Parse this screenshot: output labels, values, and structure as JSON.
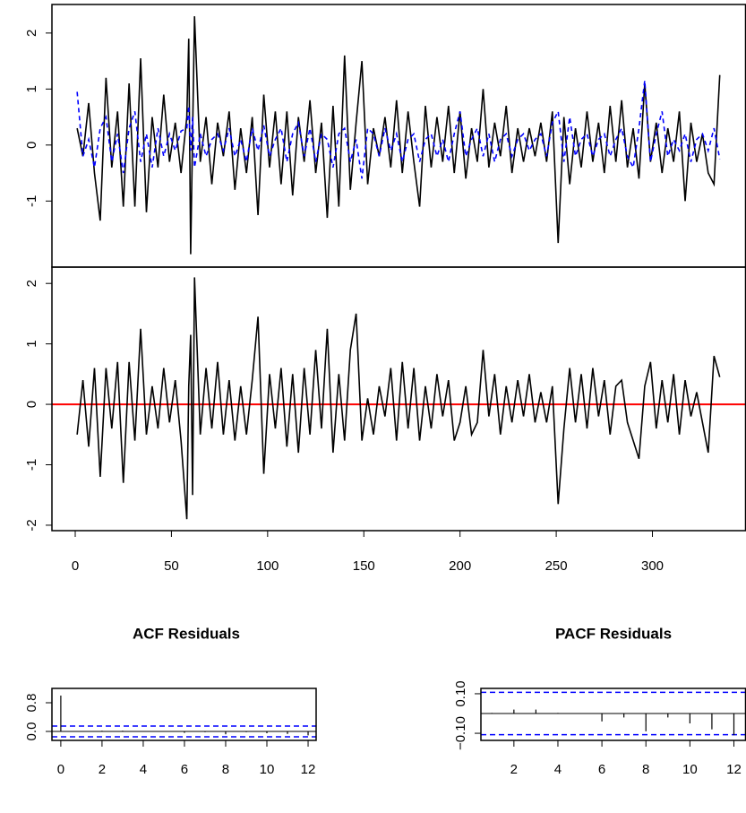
{
  "chart_data": [
    {
      "type": "line",
      "xlim": [
        -12.1,
        348.4
      ],
      "ylim": [
        -2.18,
        2.51
      ],
      "yticks": [
        -1,
        0,
        1,
        2
      ],
      "x": [
        1,
        4,
        7,
        10,
        13,
        16,
        19,
        22,
        25,
        28,
        31,
        34,
        37,
        40,
        43,
        46,
        49,
        52,
        55,
        58,
        59,
        60,
        61,
        62,
        65,
        68,
        71,
        74,
        77,
        80,
        83,
        86,
        89,
        92,
        95,
        98,
        101,
        104,
        107,
        110,
        113,
        116,
        119,
        122,
        125,
        128,
        131,
        134,
        137,
        140,
        143,
        146,
        149,
        152,
        155,
        158,
        161,
        164,
        167,
        170,
        173,
        176,
        179,
        182,
        185,
        188,
        191,
        194,
        197,
        200,
        203,
        206,
        209,
        212,
        215,
        218,
        221,
        224,
        227,
        230,
        233,
        236,
        239,
        242,
        245,
        248,
        251,
        254,
        257,
        260,
        263,
        266,
        269,
        272,
        275,
        278,
        281,
        284,
        287,
        290,
        293,
        296,
        299,
        302,
        305,
        308,
        311,
        314,
        317,
        320,
        323,
        326,
        329,
        332,
        335
      ],
      "series": [
        {
          "color": "#000000",
          "line_style": "solid",
          "values": [
            0.3,
            -0.2,
            0.75,
            -0.5,
            -1.35,
            1.2,
            -0.4,
            0.6,
            -1.1,
            1.1,
            -1.1,
            1.55,
            -1.2,
            0.5,
            -0.4,
            0.9,
            -0.3,
            0.4,
            -0.5,
            0.5,
            1.9,
            -1.95,
            0.2,
            2.3,
            -0.3,
            0.5,
            -0.7,
            0.4,
            -0.2,
            0.6,
            -0.8,
            0.3,
            -0.5,
            0.5,
            -1.25,
            0.9,
            -0.4,
            0.6,
            -0.7,
            0.6,
            -0.9,
            0.5,
            -0.3,
            0.8,
            -0.5,
            0.4,
            -1.3,
            0.7,
            -1.1,
            1.6,
            -0.8,
            0.4,
            1.5,
            -0.7,
            0.3,
            -0.2,
            0.5,
            -0.4,
            0.8,
            -0.5,
            0.6,
            -0.3,
            -1.1,
            0.7,
            -0.4,
            0.5,
            -0.3,
            0.7,
            -0.5,
            0.6,
            -0.6,
            0.3,
            -0.3,
            1.0,
            -0.4,
            0.4,
            -0.2,
            0.7,
            -0.5,
            0.3,
            -0.3,
            0.3,
            -0.2,
            0.4,
            -0.3,
            0.6,
            -1.75,
            0.5,
            -0.7,
            0.3,
            -0.4,
            0.6,
            -0.3,
            0.4,
            -0.5,
            0.7,
            -0.3,
            0.8,
            -0.4,
            0.3,
            -0.6,
            1.1,
            -0.3,
            0.4,
            -0.5,
            0.3,
            -0.3,
            0.6,
            -1.0,
            0.4,
            -0.3,
            0.2,
            -0.5,
            -0.7,
            1.25
          ]
        },
        {
          "color": "#0000ff",
          "line_style": "dashed",
          "values": [
            0.95,
            -0.2,
            0.1,
            -0.4,
            0.3,
            0.5,
            -0.3,
            0.2,
            -0.5,
            0.3,
            0.6,
            -0.3,
            0.2,
            -0.4,
            0.3,
            -0.2,
            0.2,
            -0.1,
            0.25,
            0.3,
            0.7,
            -0.1,
            0.5,
            -0.4,
            0.2,
            -0.2,
            0.1,
            0.2,
            -0.1,
            0.3,
            -0.2,
            0.1,
            -0.3,
            0.3,
            -0.1,
            0.35,
            -0.2,
            0.1,
            0.3,
            -0.3,
            0.2,
            0.4,
            -0.2,
            0.3,
            -0.3,
            0.2,
            0.1,
            -0.4,
            0.2,
            0.3,
            -0.3,
            0.1,
            -0.6,
            0.3,
            0.2,
            -0.2,
            0.3,
            -0.1,
            0.2,
            -0.3,
            0.1,
            0.2,
            -0.3,
            0.1,
            0.2,
            -0.2,
            0.1,
            -0.3,
            0.2,
            0.6,
            -0.2,
            0.1,
            0.3,
            -0.2,
            0.2,
            -0.3,
            0.1,
            0.2,
            -0.2,
            0.1,
            0.2,
            -0.1,
            0.1,
            0.2,
            -0.2,
            0.4,
            0.6,
            -0.3,
            0.5,
            -0.2,
            0.1,
            0.2,
            -0.2,
            0.1,
            0.2,
            -0.2,
            0.1,
            0.3,
            -0.2,
            -0.4,
            0.3,
            1.15,
            -0.3,
            0.2,
            0.6,
            -0.2,
            0.1,
            -0.1,
            0.2,
            -0.3,
            0.1,
            0.2,
            -0.1,
            0.3,
            -0.25
          ]
        }
      ]
    },
    {
      "type": "line",
      "xlim": [
        -12.1,
        348.4
      ],
      "ylim": [
        -2.09,
        2.27
      ],
      "xticks": [
        0,
        50,
        100,
        150,
        200,
        250,
        300
      ],
      "yticks": [
        -2,
        -1,
        0,
        1,
        2
      ],
      "hline": 0,
      "hline_color": "#ff0000",
      "x": [
        1,
        4,
        7,
        10,
        13,
        16,
        19,
        22,
        25,
        28,
        31,
        34,
        37,
        40,
        43,
        46,
        49,
        52,
        55,
        58,
        59,
        60,
        61,
        62,
        65,
        68,
        71,
        74,
        77,
        80,
        83,
        86,
        89,
        92,
        95,
        98,
        101,
        104,
        107,
        110,
        113,
        116,
        119,
        122,
        125,
        128,
        131,
        134,
        137,
        140,
        143,
        146,
        149,
        152,
        155,
        158,
        161,
        164,
        167,
        170,
        173,
        176,
        179,
        182,
        185,
        188,
        191,
        194,
        197,
        200,
        203,
        206,
        209,
        212,
        215,
        218,
        221,
        224,
        227,
        230,
        233,
        236,
        239,
        242,
        245,
        248,
        251,
        254,
        257,
        260,
        263,
        266,
        269,
        272,
        275,
        278,
        281,
        284,
        287,
        290,
        293,
        296,
        299,
        302,
        305,
        308,
        311,
        314,
        317,
        320,
        323,
        326,
        329,
        332,
        335
      ],
      "series": [
        {
          "color": "#000000",
          "line_style": "solid",
          "values": [
            -0.5,
            0.4,
            -0.7,
            0.6,
            -1.2,
            0.6,
            -0.4,
            0.7,
            -1.3,
            0.7,
            -0.6,
            1.25,
            -0.5,
            0.3,
            -0.4,
            0.6,
            -0.3,
            0.4,
            -0.6,
            -1.9,
            0.3,
            1.15,
            -1.5,
            2.1,
            -0.5,
            0.6,
            -0.4,
            0.7,
            -0.5,
            0.4,
            -0.6,
            0.3,
            -0.5,
            0.4,
            1.45,
            -1.15,
            0.5,
            -0.4,
            0.6,
            -0.7,
            0.5,
            -0.8,
            0.6,
            -0.5,
            0.9,
            -0.4,
            1.25,
            -0.8,
            0.5,
            -0.6,
            0.9,
            1.5,
            -0.6,
            0.1,
            -0.5,
            0.3,
            -0.2,
            0.6,
            -0.6,
            0.7,
            -0.4,
            0.6,
            -0.6,
            0.3,
            -0.4,
            0.5,
            -0.2,
            0.4,
            -0.6,
            -0.3,
            0.3,
            -0.5,
            -0.3,
            0.9,
            -0.2,
            0.5,
            -0.5,
            0.3,
            -0.3,
            0.4,
            -0.2,
            0.5,
            -0.3,
            0.2,
            -0.3,
            0.3,
            -1.65,
            -0.4,
            0.6,
            -0.3,
            0.5,
            -0.4,
            0.6,
            -0.2,
            0.4,
            -0.5,
            0.3,
            0.4,
            -0.3,
            -0.6,
            -0.9,
            0.3,
            0.7,
            -0.4,
            0.4,
            -0.3,
            0.5,
            -0.5,
            0.4,
            -0.2,
            0.2,
            -0.3,
            -0.8,
            0.8,
            0.45
          ]
        }
      ]
    },
    {
      "type": "stem",
      "title": "ACF Residuals",
      "xlim": [
        -0.43,
        12.39
      ],
      "ylim": [
        -0.25,
        1.2
      ],
      "xticks": [
        0,
        2,
        4,
        6,
        8,
        10,
        12
      ],
      "yticks": [
        {
          "value": 0,
          "label": "0.0"
        },
        {
          "value": 0.8,
          "label": "0.8"
        }
      ],
      "ci": 0.15,
      "ci_color": "#0000ff",
      "x": [
        0,
        1,
        2,
        3,
        4,
        5,
        6,
        7,
        8,
        9,
        10,
        11,
        12
      ],
      "values": [
        1,
        0.01,
        0.02,
        0.02,
        0.0,
        0.0,
        -0.04,
        -0.02,
        -0.08,
        -0.02,
        -0.05,
        -0.07,
        -0.11
      ],
      "color": "#000000"
    },
    {
      "type": "stem",
      "title": "PACF Residuals",
      "xlim": [
        0.5,
        12.53
      ],
      "ylim": [
        -0.136,
        0.127
      ],
      "xticks": [
        2,
        4,
        6,
        8,
        10,
        12
      ],
      "yticks": [
        {
          "value": -0.1,
          "label": "−0.10"
        },
        {
          "value": 0.1,
          "label": "0.10"
        }
      ],
      "ci": 0.107,
      "ci_color": "#0000ff",
      "x": [
        1,
        2,
        3,
        4,
        5,
        6,
        7,
        8,
        9,
        10,
        11,
        12
      ],
      "values": [
        0.003,
        0.02,
        0.02,
        0.003,
        0.002,
        -0.04,
        -0.02,
        -0.09,
        -0.02,
        -0.05,
        -0.08,
        -0.11
      ],
      "color": "#000000"
    }
  ]
}
